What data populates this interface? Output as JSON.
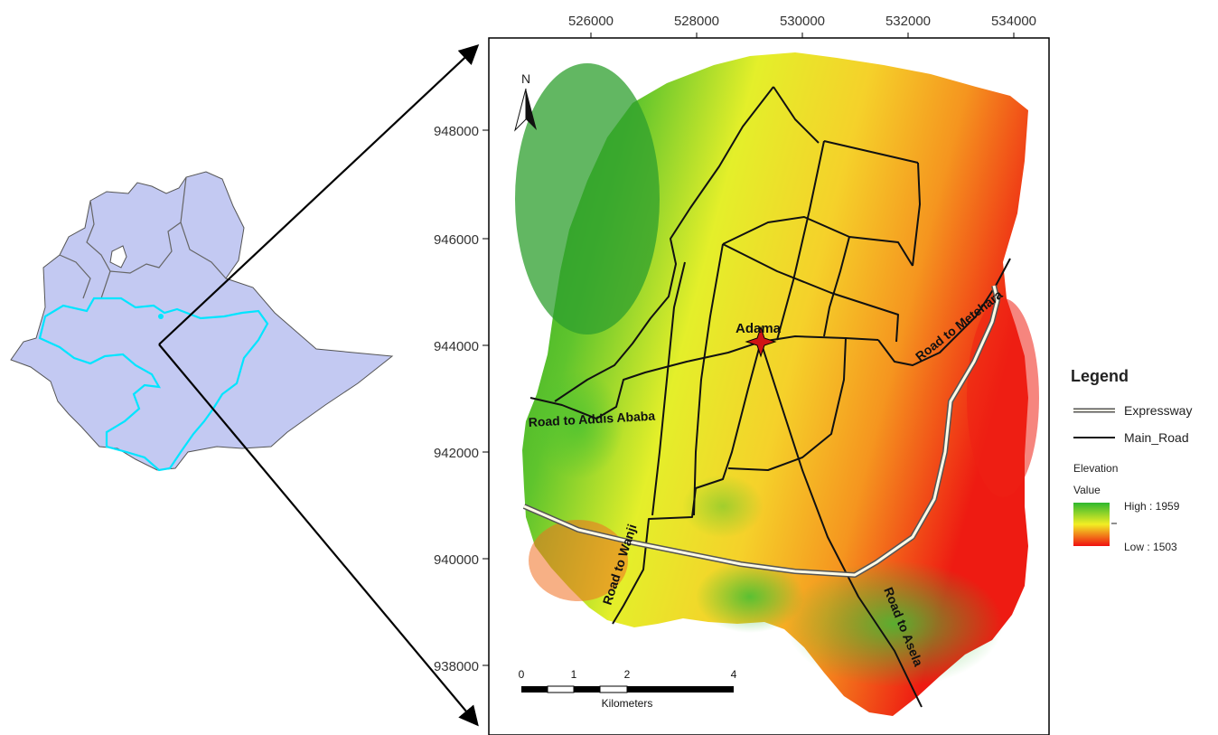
{
  "x_ticks": [
    "526000",
    "528000",
    "530000",
    "532000",
    "534000"
  ],
  "y_ticks": [
    "948000",
    "946000",
    "944000",
    "942000",
    "940000",
    "938000"
  ],
  "north_label": "N",
  "city_label": "Adama",
  "road_labels": {
    "addis": "Road to Addis Ababa",
    "metehara": "Road to Metehara",
    "wanji": "Road to Wanji",
    "asela": "Road to Asela"
  },
  "legend": {
    "title": "Legend",
    "expressway": "Expressway",
    "main_road": "Main_Road",
    "elevation": "Elevation",
    "value": "Value",
    "high": "High : 1959",
    "low": "Low : 1503"
  },
  "scalebar": {
    "labels": [
      "0",
      "1",
      "2",
      "4"
    ],
    "unit": "Kilometers"
  },
  "colors": {
    "country_fill": "#c3c9f2",
    "region_outline": "#00e5ff",
    "high": "#2fb82f",
    "mid": "#f2ee24",
    "low": "#f01010"
  }
}
